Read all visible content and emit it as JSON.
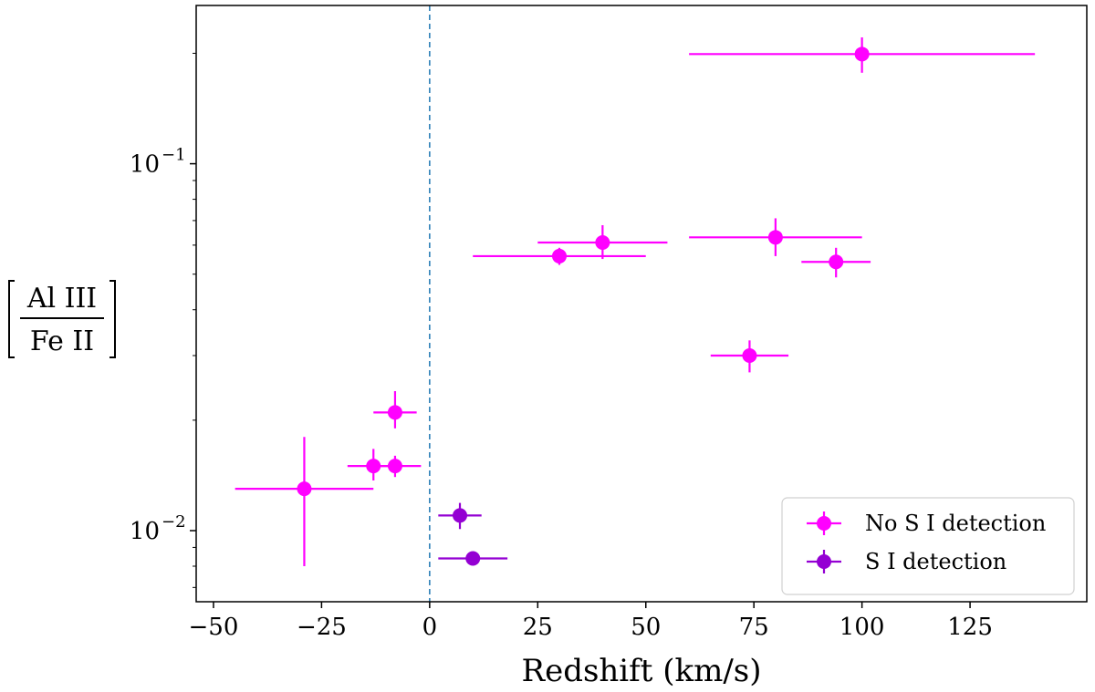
{
  "chart_data": {
    "type": "scatter",
    "title": "",
    "xlabel": "Redshift (km/s)",
    "ylabel": {
      "numerator": "Al III",
      "denominator": "Fe II"
    },
    "xlim": [
      -54,
      152
    ],
    "ylim": [
      0.0064,
      0.27
    ],
    "yscale": "log",
    "xticks": [
      -50,
      -25,
      0,
      25,
      50,
      75,
      100,
      125
    ],
    "xtick_labels": [
      "−50",
      "−25",
      "0",
      "25",
      "50",
      "75",
      "100",
      "125"
    ],
    "yticks": [
      0.01,
      0.1
    ],
    "ytick_labels": [
      {
        "base": "10",
        "exp": "−2"
      },
      {
        "base": "10",
        "exp": "−1"
      }
    ],
    "reference_line": {
      "x": 0,
      "style": "dashed",
      "color": "#1f77b4"
    },
    "legend_position": "lower-right",
    "series": [
      {
        "name": "No S I detection",
        "color": "#ff00ff",
        "points": [
          {
            "x": 100,
            "y": 0.199,
            "xerr": [
              40,
              40
            ],
            "yerr": [
              0.022,
              0.022
            ]
          },
          {
            "x": 80,
            "y": 0.063,
            "xerr": [
              20,
              20
            ],
            "yerr": [
              0.007,
              0.008
            ]
          },
          {
            "x": 40,
            "y": 0.061,
            "xerr": [
              15,
              15
            ],
            "yerr": [
              0.006,
              0.007
            ]
          },
          {
            "x": 30,
            "y": 0.056,
            "xerr": [
              20,
              20
            ],
            "yerr": [
              0.003,
              0.003
            ]
          },
          {
            "x": 94,
            "y": 0.054,
            "xerr": [
              8,
              8
            ],
            "yerr": [
              0.005,
              0.005
            ]
          },
          {
            "x": 74,
            "y": 0.03,
            "xerr": [
              9,
              9
            ],
            "yerr": [
              0.003,
              0.003
            ]
          },
          {
            "x": -8,
            "y": 0.021,
            "xerr": [
              5,
              5
            ],
            "yerr": [
              0.002,
              0.003
            ]
          },
          {
            "x": -13,
            "y": 0.015,
            "xerr": [
              6,
              6
            ],
            "yerr": [
              0.0013,
              0.0017
            ]
          },
          {
            "x": -8,
            "y": 0.015,
            "xerr": [
              6,
              6
            ],
            "yerr": [
              0.001,
              0.001
            ]
          },
          {
            "x": -29,
            "y": 0.013,
            "xerr": [
              16,
              16
            ],
            "yerr": [
              0.005,
              0.005
            ]
          }
        ]
      },
      {
        "name": "S I detection",
        "color": "#9400d3",
        "points": [
          {
            "x": 7,
            "y": 0.011,
            "xerr": [
              5,
              5
            ],
            "yerr": [
              0.0009,
              0.0009
            ]
          },
          {
            "x": 10,
            "y": 0.0084,
            "xerr": [
              8,
              8
            ],
            "yerr": [
              0.0,
              0.0
            ]
          }
        ]
      }
    ]
  }
}
